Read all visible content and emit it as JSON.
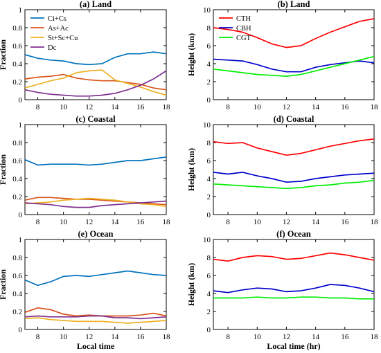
{
  "colors": {
    "blue": "#0072BD",
    "orange": "#D95319",
    "gold": "#EDB120",
    "purple": "#7E2F8E",
    "red": "#FF0000",
    "navy": "#0000CC",
    "green": "#00EE00"
  },
  "chart_data": [
    {
      "type": "line",
      "title": "(a) Land",
      "xlabel": "",
      "ylabel": "Fraction",
      "xlim": [
        7,
        18
      ],
      "ylim": [
        0,
        1
      ],
      "xticks": [
        8,
        10,
        12,
        14,
        16,
        18
      ],
      "yticks": [
        0,
        0.2,
        0.4,
        0.6,
        0.8,
        1
      ],
      "legend": "top-left",
      "x": [
        7,
        8,
        9,
        10,
        11,
        12,
        13,
        14,
        15,
        16,
        17,
        18
      ],
      "series": [
        {
          "name": "Ci+Cs",
          "color": "#0072BD",
          "values": [
            0.5,
            0.46,
            0.44,
            0.43,
            0.4,
            0.39,
            0.4,
            0.47,
            0.51,
            0.51,
            0.53,
            0.51
          ]
        },
        {
          "name": "As+Ac",
          "color": "#D95319",
          "values": [
            0.23,
            0.25,
            0.26,
            0.28,
            0.24,
            0.22,
            0.21,
            0.21,
            0.19,
            0.17,
            0.13,
            0.11
          ]
        },
        {
          "name": "St+Sc+Cu",
          "color": "#EDB120",
          "values": [
            0.13,
            0.17,
            0.21,
            0.24,
            0.3,
            0.32,
            0.33,
            0.22,
            0.18,
            0.14,
            0.09,
            0.05
          ]
        },
        {
          "name": "Dc",
          "color": "#7E2F8E",
          "values": [
            0.11,
            0.08,
            0.06,
            0.05,
            0.04,
            0.04,
            0.05,
            0.07,
            0.11,
            0.16,
            0.23,
            0.32
          ]
        }
      ]
    },
    {
      "type": "line",
      "title": "(b) Land",
      "xlabel": "",
      "ylabel": "Height (km)",
      "xlim": [
        7,
        18
      ],
      "ylim": [
        0,
        10
      ],
      "xticks": [
        8,
        10,
        12,
        14,
        16,
        18
      ],
      "yticks": [
        0,
        2,
        4,
        6,
        8,
        10
      ],
      "legend": "top-left",
      "x": [
        7,
        8,
        9,
        10,
        11,
        12,
        13,
        14,
        15,
        16,
        17,
        18
      ],
      "series": [
        {
          "name": "CTH",
          "color": "#FF0000",
          "values": [
            8.0,
            7.8,
            7.5,
            6.9,
            6.2,
            5.8,
            6.0,
            6.8,
            7.5,
            8.1,
            8.7,
            9.0
          ]
        },
        {
          "name": "CBH",
          "color": "#0000CC",
          "values": [
            4.5,
            4.4,
            4.3,
            3.9,
            3.4,
            3.1,
            3.1,
            3.6,
            3.9,
            4.1,
            4.3,
            4.1
          ]
        },
        {
          "name": "CGT",
          "color": "#00EE00",
          "values": [
            3.4,
            3.2,
            3.0,
            2.8,
            2.7,
            2.6,
            2.8,
            3.2,
            3.6,
            4.0,
            4.4,
            4.8
          ]
        }
      ]
    },
    {
      "type": "line",
      "title": "(c) Coastal",
      "xlabel": "",
      "ylabel": "Fraction",
      "xlim": [
        7,
        18
      ],
      "ylim": [
        0,
        1
      ],
      "xticks": [
        8,
        10,
        12,
        14,
        16,
        18
      ],
      "yticks": [
        0,
        0.2,
        0.4,
        0.6,
        0.8,
        1
      ],
      "x": [
        7,
        8,
        9,
        10,
        11,
        12,
        13,
        14,
        15,
        16,
        17,
        18
      ],
      "series": [
        {
          "name": "Ci+Cs",
          "color": "#0072BD",
          "values": [
            0.61,
            0.55,
            0.56,
            0.56,
            0.56,
            0.55,
            0.56,
            0.58,
            0.6,
            0.6,
            0.62,
            0.64
          ]
        },
        {
          "name": "As+Ac",
          "color": "#D95319",
          "values": [
            0.16,
            0.19,
            0.19,
            0.18,
            0.17,
            0.17,
            0.16,
            0.15,
            0.14,
            0.13,
            0.12,
            0.11
          ]
        },
        {
          "name": "St+Sc+Cu",
          "color": "#EDB120",
          "values": [
            0.12,
            0.13,
            0.14,
            0.16,
            0.17,
            0.18,
            0.17,
            0.16,
            0.14,
            0.12,
            0.11,
            0.09
          ]
        },
        {
          "name": "Dc",
          "color": "#7E2F8E",
          "values": [
            0.13,
            0.12,
            0.11,
            0.09,
            0.08,
            0.08,
            0.1,
            0.11,
            0.12,
            0.13,
            0.14,
            0.15
          ]
        }
      ]
    },
    {
      "type": "line",
      "title": "(d) Coastal",
      "xlabel": "",
      "ylabel": "Height (km)",
      "xlim": [
        7,
        18
      ],
      "ylim": [
        0,
        10
      ],
      "xticks": [
        8,
        10,
        12,
        14,
        16,
        18
      ],
      "yticks": [
        0,
        2,
        4,
        6,
        8,
        10
      ],
      "x": [
        7,
        8,
        9,
        10,
        11,
        12,
        13,
        14,
        15,
        16,
        17,
        18
      ],
      "series": [
        {
          "name": "CTH",
          "color": "#FF0000",
          "values": [
            8.1,
            7.9,
            8.0,
            7.4,
            7.0,
            6.6,
            6.8,
            7.2,
            7.6,
            7.9,
            8.2,
            8.4
          ]
        },
        {
          "name": "CBH",
          "color": "#0000CC",
          "values": [
            4.7,
            4.5,
            4.7,
            4.3,
            4.0,
            3.6,
            3.7,
            4.0,
            4.2,
            4.4,
            4.5,
            4.6
          ]
        },
        {
          "name": "CGT",
          "color": "#00EE00",
          "values": [
            3.4,
            3.3,
            3.2,
            3.1,
            3.0,
            2.9,
            3.0,
            3.2,
            3.3,
            3.5,
            3.6,
            3.8
          ]
        }
      ]
    },
    {
      "type": "line",
      "title": "(e) Ocean",
      "xlabel": "Local time",
      "ylabel": "Fraction",
      "xlim": [
        7,
        18
      ],
      "ylim": [
        0,
        1
      ],
      "xticks": [
        8,
        10,
        12,
        14,
        16,
        18
      ],
      "yticks": [
        0,
        0.2,
        0.4,
        0.6,
        0.8,
        1
      ],
      "x": [
        7,
        8,
        9,
        10,
        11,
        12,
        13,
        14,
        15,
        16,
        17,
        18
      ],
      "series": [
        {
          "name": "Ci+Cs",
          "color": "#0072BD",
          "values": [
            0.55,
            0.49,
            0.53,
            0.59,
            0.6,
            0.59,
            0.61,
            0.63,
            0.65,
            0.63,
            0.61,
            0.6
          ]
        },
        {
          "name": "As+Ac",
          "color": "#D95319",
          "values": [
            0.19,
            0.24,
            0.22,
            0.17,
            0.15,
            0.16,
            0.15,
            0.15,
            0.15,
            0.16,
            0.18,
            0.15
          ]
        },
        {
          "name": "St+Sc+Cu",
          "color": "#EDB120",
          "values": [
            0.12,
            0.13,
            0.11,
            0.1,
            0.09,
            0.09,
            0.09,
            0.08,
            0.07,
            0.08,
            0.09,
            0.1
          ]
        },
        {
          "name": "Dc",
          "color": "#7E2F8E",
          "values": [
            0.14,
            0.15,
            0.14,
            0.14,
            0.14,
            0.15,
            0.15,
            0.13,
            0.13,
            0.12,
            0.13,
            0.14
          ]
        }
      ]
    },
    {
      "type": "line",
      "title": "(f) Ocean",
      "xlabel": "Local time (hr)",
      "ylabel": "Height (km)",
      "xlim": [
        7,
        18
      ],
      "ylim": [
        0,
        10
      ],
      "xticks": [
        8,
        10,
        12,
        14,
        16,
        18
      ],
      "yticks": [
        0,
        2,
        4,
        6,
        8,
        10
      ],
      "x": [
        7,
        8,
        9,
        10,
        11,
        12,
        13,
        14,
        15,
        16,
        17,
        18
      ],
      "series": [
        {
          "name": "CTH",
          "color": "#FF0000",
          "values": [
            7.8,
            7.6,
            8.0,
            8.2,
            8.1,
            7.8,
            7.9,
            8.2,
            8.5,
            8.3,
            8.0,
            7.7
          ]
        },
        {
          "name": "CBH",
          "color": "#0000CC",
          "values": [
            4.3,
            4.1,
            4.4,
            4.6,
            4.5,
            4.2,
            4.3,
            4.6,
            5.0,
            4.9,
            4.6,
            4.2
          ]
        },
        {
          "name": "CGT",
          "color": "#00EE00",
          "values": [
            3.5,
            3.5,
            3.5,
            3.6,
            3.5,
            3.5,
            3.6,
            3.6,
            3.5,
            3.5,
            3.4,
            3.4
          ]
        }
      ]
    }
  ]
}
